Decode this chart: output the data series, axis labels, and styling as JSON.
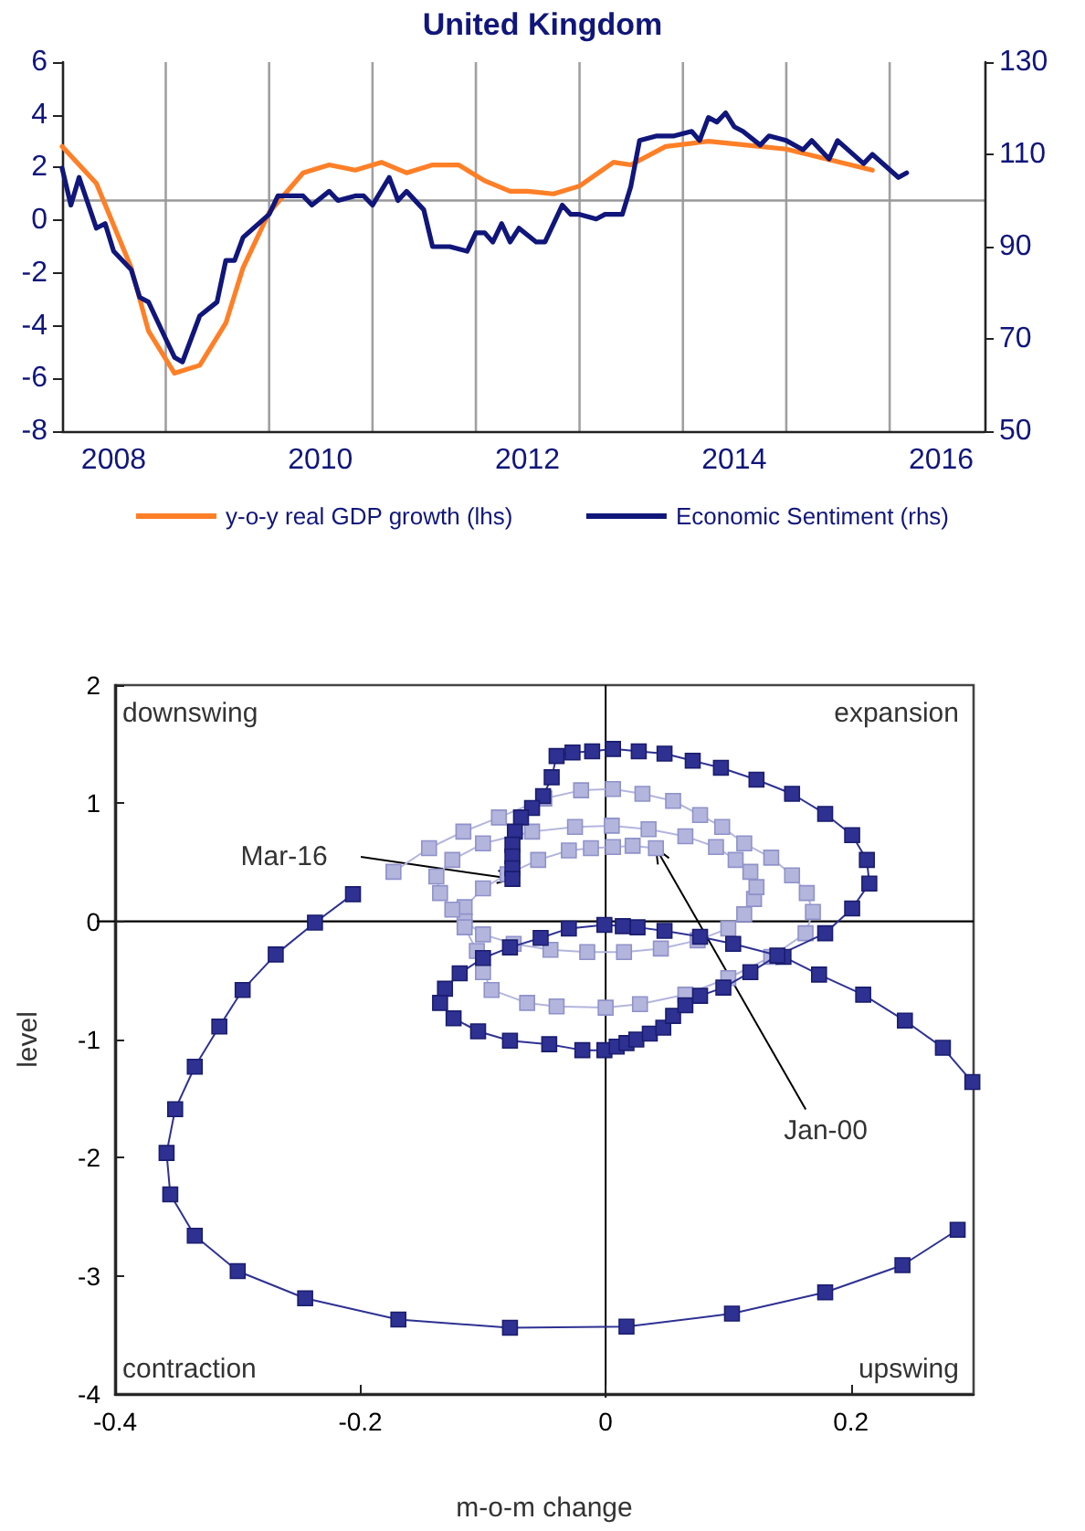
{
  "chart_data": [
    {
      "type": "line",
      "title": "United Kingdom",
      "marker": "none",
      "grid": "x",
      "legend": "bottom",
      "xlim": [
        "2008-01",
        "2016-12"
      ],
      "xticks": [
        {
          "value": "2008-07",
          "label": "2008"
        },
        {
          "value": "2009-01",
          "label": null
        },
        {
          "value": "2010-01",
          "label": null
        },
        {
          "value": "2010-07",
          "label": "2010"
        },
        {
          "value": "2011-01",
          "label": null
        },
        {
          "value": "2012-01",
          "label": null
        },
        {
          "value": "2012-07",
          "label": "2012"
        },
        {
          "value": "2013-01",
          "label": null
        },
        {
          "value": "2014-01",
          "label": null
        },
        {
          "value": "2014-07",
          "label": "2014"
        },
        {
          "value": "2015-01",
          "label": null
        },
        {
          "value": "2016-01",
          "label": null
        },
        {
          "value": "2016-07",
          "label": "2016"
        }
      ],
      "ylim": [
        -8,
        6
      ],
      "yticks": [
        -8,
        -6,
        -4,
        -2,
        0,
        2,
        4,
        6
      ],
      "y2lim": [
        50,
        130
      ],
      "y2ticks": [
        50,
        70,
        90,
        110,
        130
      ],
      "ref_lines": [
        {
          "axis": "y2",
          "value": 100,
          "color": "#999999"
        }
      ],
      "series": [
        {
          "name": "y-o-y real GDP growth (lhs)",
          "color": "#ff7f27",
          "x": [
            "2008-01",
            "2008-05",
            "2008-09",
            "2008-11",
            "2009-02",
            "2009-05",
            "2009-08",
            "2009-10",
            "2010-01",
            "2010-05",
            "2010-08",
            "2010-11",
            "2011-02",
            "2011-05",
            "2011-08",
            "2011-11",
            "2012-02",
            "2012-05",
            "2012-07",
            "2012-10",
            "2013-01",
            "2013-05",
            "2013-07",
            "2013-11",
            "2014-04",
            "2014-10",
            "2015-01",
            "2015-06",
            "2015-11"
          ],
          "values": [
            2.8,
            1.4,
            -1.8,
            -4.2,
            -5.8,
            -5.5,
            -3.9,
            -1.8,
            0.3,
            1.8,
            2.1,
            1.9,
            2.2,
            1.8,
            2.1,
            2.1,
            1.5,
            1.1,
            1.1,
            1.0,
            1.3,
            2.2,
            2.1,
            2.8,
            3.0,
            2.8,
            2.7,
            2.3,
            1.9
          ]
        },
        {
          "name": "Economic Sentiment (rhs)",
          "color": "#10167a",
          "axis": "y2",
          "x": [
            "2008-01",
            "2008-02",
            "2008-03",
            "2008-05",
            "2008-06",
            "2008-07",
            "2008-09",
            "2008-10",
            "2008-11",
            "2009-01",
            "2009-02",
            "2009-03",
            "2009-05",
            "2009-07",
            "2009-08",
            "2009-09",
            "2009-10",
            "2010-01",
            "2010-02",
            "2010-04",
            "2010-05",
            "2010-06",
            "2010-08",
            "2010-09",
            "2010-11",
            "2010-12",
            "2011-01",
            "2011-03",
            "2011-04",
            "2011-05",
            "2011-07",
            "2011-08",
            "2011-10",
            "2011-12",
            "2012-01",
            "2012-02",
            "2012-03",
            "2012-04",
            "2012-05",
            "2012-06",
            "2012-08",
            "2012-09",
            "2012-11",
            "2012-12",
            "2013-01",
            "2013-03",
            "2013-04",
            "2013-06",
            "2013-07",
            "2013-08",
            "2013-10",
            "2013-12",
            "2014-02",
            "2014-03",
            "2014-04",
            "2014-05",
            "2014-06",
            "2014-07",
            "2014-08",
            "2014-10",
            "2014-11",
            "2015-01",
            "2015-03",
            "2015-04",
            "2015-06",
            "2015-07",
            "2015-10",
            "2015-11",
            "2016-02",
            "2016-03"
          ],
          "values": [
            107,
            99,
            105,
            94,
            95,
            89,
            85,
            79,
            78,
            70,
            66,
            65,
            75,
            78,
            87,
            87,
            92,
            97,
            101,
            101,
            101,
            99,
            102,
            100,
            101,
            101,
            99,
            105,
            100,
            102,
            98,
            90,
            90,
            89,
            93,
            93,
            91,
            95,
            91,
            94,
            91,
            91,
            99,
            97,
            97,
            96,
            97,
            97,
            103,
            113,
            114,
            114,
            115,
            113,
            118,
            117,
            119,
            116,
            115,
            112,
            114,
            113,
            111,
            113,
            109,
            113,
            108,
            110,
            105,
            106
          ]
        }
      ]
    },
    {
      "type": "line",
      "marker": "square",
      "grid": false,
      "legend": false,
      "xlabel": "m-o-m change",
      "ylabel": "level",
      "xlim": [
        -0.4,
        0.3
      ],
      "xticks": [
        -0.4,
        -0.2,
        0,
        0.2
      ],
      "ylim": [
        -4,
        2
      ],
      "yticks": [
        -4,
        -3,
        -2,
        -1,
        0,
        1,
        2
      ],
      "ref_lines": [
        {
          "axis": "x",
          "value": 0,
          "color": "#000000"
        },
        {
          "axis": "y",
          "value": 0,
          "color": "#000000"
        }
      ],
      "annotations": [
        "downswing",
        "expansion",
        "contraction",
        "upswing",
        {
          "text": "Mar-16",
          "x": -0.076,
          "y": 0.36
        },
        {
          "text": "Jan-00",
          "x": 0.041,
          "y": 0.62
        }
      ],
      "series": [
        {
          "color": "#b3b5dd",
          "x": [
            0.041,
            0.022,
            0.006,
            -0.012,
            -0.03,
            -0.055,
            -0.08,
            -0.1,
            -0.115,
            -0.115,
            -0.1,
            -0.075,
            -0.045,
            -0.015,
            0.015,
            0.045,
            0.075,
            0.1,
            0.113,
            0.121,
            0.123,
            0.118,
            0.106,
            0.09,
            0.065,
            0.035,
            0.005,
            -0.025,
            -0.06,
            -0.1,
            -0.125,
            -0.138,
            -0.135,
            -0.125,
            -0.115,
            -0.105,
            -0.1,
            -0.093,
            -0.064,
            -0.04,
            0.0,
            0.028,
            0.065,
            0.1,
            0.135,
            0.163,
            0.169,
            0.164,
            0.152,
            0.135,
            0.113,
            0.095,
            0.077,
            0.055,
            0.03,
            0.006,
            -0.02,
            -0.05,
            -0.087,
            -0.116,
            -0.144,
            -0.173
          ],
          "values": [
            0.62,
            0.64,
            0.63,
            0.62,
            0.6,
            0.52,
            0.4,
            0.28,
            0.12,
            0.0,
            -0.11,
            -0.19,
            -0.24,
            -0.26,
            -0.26,
            -0.23,
            -0.16,
            -0.06,
            0.06,
            0.19,
            0.29,
            0.42,
            0.52,
            0.63,
            0.72,
            0.78,
            0.81,
            0.8,
            0.76,
            0.66,
            0.52,
            0.38,
            0.24,
            0.1,
            -0.05,
            -0.25,
            -0.43,
            -0.58,
            -0.69,
            -0.72,
            -0.73,
            -0.7,
            -0.62,
            -0.48,
            -0.3,
            -0.1,
            0.08,
            0.24,
            0.39,
            0.54,
            0.66,
            0.8,
            0.9,
            1.02,
            1.08,
            1.12,
            1.11,
            1.04,
            0.88,
            0.76,
            0.62,
            0.42
          ]
        },
        {
          "color": "#2e3192",
          "x": [
            -0.206,
            -0.237,
            -0.269,
            -0.296,
            -0.315,
            -0.335,
            -0.351,
            -0.358,
            -0.355,
            -0.335,
            -0.3,
            -0.245,
            -0.169,
            -0.078,
            0.017,
            0.103,
            0.179,
            0.242,
            0.287,
            null,
            0.299,
            0.275,
            0.244,
            0.21,
            0.174,
            0.145,
            0.104,
            0.077,
            0.048,
            0.026,
            0.014,
            -0.001,
            -0.03,
            -0.053,
            -0.078,
            -0.1,
            -0.119,
            -0.131,
            -0.135,
            -0.124,
            -0.104,
            -0.078,
            -0.046,
            -0.019,
            -0.001,
            0.009,
            0.017,
            0.025,
            0.036,
            0.047,
            0.055,
            0.065,
            0.077,
            0.096,
            0.118,
            0.14,
            0.179,
            0.201,
            0.215,
            0.213,
            0.201,
            0.179,
            0.152,
            0.123,
            0.094,
            0.071,
            0.048,
            0.027,
            0.006,
            -0.011,
            -0.027,
            -0.04,
            -0.044,
            -0.051,
            -0.06,
            -0.069,
            -0.074,
            -0.076,
            -0.076,
            -0.076,
            -0.076
          ],
          "values": [
            0.23,
            -0.01,
            -0.28,
            -0.58,
            -0.89,
            -1.23,
            -1.59,
            -1.96,
            -2.31,
            -2.66,
            -2.96,
            -3.19,
            -3.37,
            -3.44,
            -3.43,
            -3.32,
            -3.14,
            -2.91,
            -2.61,
            null,
            -1.36,
            -1.07,
            -0.84,
            -0.62,
            -0.45,
            -0.3,
            -0.19,
            -0.13,
            -0.08,
            -0.05,
            -0.04,
            -0.03,
            -0.06,
            -0.14,
            -0.22,
            -0.31,
            -0.44,
            -0.57,
            -0.69,
            -0.82,
            -0.93,
            -1.01,
            -1.04,
            -1.09,
            -1.09,
            -1.06,
            -1.03,
            -1.0,
            -0.95,
            -0.9,
            -0.8,
            -0.71,
            -0.63,
            -0.56,
            -0.43,
            -0.29,
            -0.1,
            0.11,
            0.32,
            0.52,
            0.73,
            0.91,
            1.08,
            1.2,
            1.3,
            1.36,
            1.42,
            1.44,
            1.46,
            1.44,
            1.43,
            1.4,
            1.22,
            1.06,
            0.96,
            0.88,
            0.76,
            0.65,
            0.55,
            0.45,
            0.36
          ]
        }
      ]
    }
  ]
}
